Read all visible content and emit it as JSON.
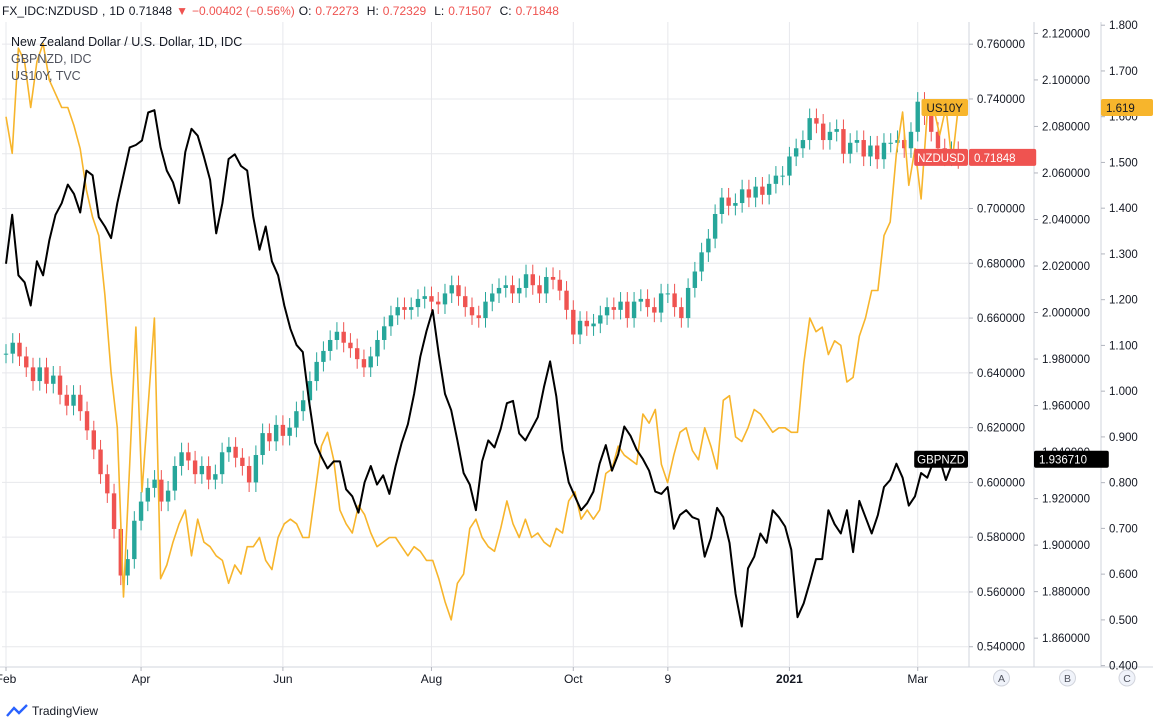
{
  "header": {
    "symbol": "FX_IDC:NZDUSD",
    "interval": "1D",
    "last": "0.71848",
    "change": "−0.00402 (−0.56%)",
    "open_label": "O:",
    "open": "0.72273",
    "high_label": "H:",
    "high": "0.72329",
    "low_label": "L:",
    "low": "0.71507",
    "close_label": "C:",
    "close": "0.71848"
  },
  "legend": {
    "line1": "New Zealand Dollar / U.S. Dollar, 1D, IDC",
    "line2": "GBPNZD, IDC",
    "line3": "US10Y, TVC"
  },
  "colors": {
    "up": "#26a69a",
    "down": "#ef5350",
    "gbpnzd": "#000000",
    "us10y": "#f7b52c",
    "grid": "#e7e8ec"
  },
  "footer": {
    "brand": "TradingView",
    "scale_a": "A",
    "scale_b": "B",
    "scale_c": "C"
  },
  "chart_data": {
    "type": "line",
    "x_ticks": [
      "Feb",
      "Apr",
      "Jun",
      "Aug",
      "Oct",
      "9",
      "2021",
      "Mar"
    ],
    "axes": {
      "A": {
        "ticks": [
          "0.760000",
          "0.740000",
          "0.720000",
          "0.700000",
          "0.680000",
          "0.660000",
          "0.640000",
          "0.620000",
          "0.600000",
          "0.580000",
          "0.560000",
          "0.540000"
        ],
        "ylim": [
          0.5326,
          0.7681
        ]
      },
      "B": {
        "ticks": [
          "2.120000",
          "2.100000",
          "2.080000",
          "2.060000",
          "2.040000",
          "2.020000",
          "2.000000",
          "1.980000",
          "1.960000",
          "1.940000",
          "1.920000",
          "1.900000",
          "1.880000",
          "1.860000"
        ],
        "ylim": [
          1.8476,
          2.1249
        ]
      },
      "C": {
        "ticks": [
          "1.800",
          "1.700",
          "1.600",
          "1.500",
          "1.400",
          "1.300",
          "1.200",
          "1.100",
          "1.000",
          "0.900",
          "0.800",
          "0.700",
          "0.600",
          "0.500",
          "0.400"
        ],
        "ylim": [
          0.397,
          1.807
        ]
      }
    },
    "markers": [
      {
        "name": "US10Y",
        "value": "1.619",
        "axis": "C"
      },
      {
        "name": "NZDUSD",
        "value": "0.71848",
        "axis": "A"
      },
      {
        "name": "GBPNZD",
        "value": "1.936710",
        "axis": "B"
      }
    ],
    "series": [
      {
        "name": "NZDUSD",
        "style": "candles",
        "axis": "A",
        "close": [
          0.647,
          0.651,
          0.646,
          0.642,
          0.637,
          0.642,
          0.636,
          0.639,
          0.632,
          0.628,
          0.632,
          0.626,
          0.619,
          0.612,
          0.603,
          0.596,
          0.583,
          0.566,
          0.572,
          0.586,
          0.593,
          0.598,
          0.601,
          0.593,
          0.597,
          0.606,
          0.611,
          0.608,
          0.603,
          0.606,
          0.601,
          0.603,
          0.611,
          0.613,
          0.609,
          0.606,
          0.6,
          0.61,
          0.618,
          0.615,
          0.621,
          0.617,
          0.62,
          0.626,
          0.63,
          0.637,
          0.644,
          0.648,
          0.652,
          0.655,
          0.651,
          0.649,
          0.645,
          0.642,
          0.646,
          0.652,
          0.657,
          0.661,
          0.664,
          0.663,
          0.664,
          0.667,
          0.668,
          0.666,
          0.665,
          0.669,
          0.672,
          0.668,
          0.664,
          0.661,
          0.66,
          0.666,
          0.669,
          0.671,
          0.672,
          0.669,
          0.671,
          0.676,
          0.672,
          0.669,
          0.675,
          0.674,
          0.67,
          0.663,
          0.654,
          0.659,
          0.657,
          0.658,
          0.661,
          0.664,
          0.663,
          0.666,
          0.66,
          0.666,
          0.667,
          0.664,
          0.662,
          0.669,
          0.669,
          0.664,
          0.66,
          0.671,
          0.677,
          0.684,
          0.689,
          0.698,
          0.704,
          0.701,
          0.702,
          0.707,
          0.704,
          0.708,
          0.705,
          0.709,
          0.712,
          0.712,
          0.719,
          0.722,
          0.725,
          0.733,
          0.731,
          0.725,
          0.728,
          0.729,
          0.72,
          0.724,
          0.725,
          0.719,
          0.723,
          0.718,
          0.724,
          0.724,
          0.725,
          0.722,
          0.728,
          0.739,
          0.734,
          0.728,
          0.722,
          0.719,
          0.721,
          0.718
        ]
      },
      {
        "name": "GBPNZD",
        "style": "line",
        "axis": "B",
        "values": [
          2.021,
          2.042,
          2.016,
          2.013,
          2.003,
          2.022,
          2.016,
          2.031,
          2.042,
          2.047,
          2.055,
          2.051,
          2.043,
          2.061,
          2.059,
          2.041,
          2.037,
          2.032,
          2.047,
          2.059,
          2.071,
          2.072,
          2.074,
          2.086,
          2.087,
          2.071,
          2.061,
          2.056,
          2.047,
          2.069,
          2.079,
          2.076,
          2.067,
          2.057,
          2.034,
          2.047,
          2.066,
          2.068,
          2.063,
          2.061,
          2.041,
          2.027,
          2.037,
          2.022,
          2.016,
          2.003,
          1.993,
          1.986,
          1.983,
          1.962,
          1.944,
          1.938,
          1.933,
          1.936,
          1.936,
          1.924,
          1.921,
          1.914,
          1.927,
          1.934,
          1.926,
          1.93,
          1.922,
          1.934,
          1.944,
          1.952,
          1.965,
          1.981,
          1.992,
          2.001,
          1.982,
          1.965,
          1.958,
          1.945,
          1.931,
          1.926,
          1.915,
          1.936,
          1.945,
          1.942,
          1.95,
          1.961,
          1.962,
          1.948,
          1.945,
          1.95,
          1.955,
          1.968,
          1.979,
          1.964,
          1.941,
          1.927,
          1.921,
          1.915,
          1.918,
          1.923,
          1.935,
          1.943,
          1.932,
          1.939,
          1.951,
          1.947,
          1.941,
          1.937,
          1.932,
          1.923,
          1.922,
          1.925,
          1.907,
          1.913,
          1.915,
          1.912,
          1.911,
          1.895,
          1.903,
          1.916,
          1.912,
          1.901,
          1.879,
          1.865,
          1.89,
          1.895,
          1.905,
          1.901,
          1.915,
          1.912,
          1.908,
          1.898,
          1.869,
          1.875,
          1.884,
          1.894,
          1.894,
          1.915,
          1.909,
          1.905,
          1.915,
          1.897,
          1.919,
          1.912,
          1.905,
          1.913,
          1.925,
          1.928,
          1.935,
          1.929,
          1.917,
          1.921,
          1.931,
          1.929,
          1.936,
          1.937,
          1.928,
          1.935,
          1.937
        ]
      },
      {
        "name": "US10Y",
        "style": "line",
        "axis": "C",
        "values": [
          1.6,
          1.52,
          1.75,
          1.72,
          1.62,
          1.72,
          1.76,
          1.68,
          1.65,
          1.62,
          1.62,
          1.58,
          1.53,
          1.44,
          1.38,
          1.34,
          1.21,
          1.04,
          0.92,
          0.55,
          0.84,
          1.14,
          0.78,
          0.97,
          1.16,
          0.59,
          0.62,
          0.67,
          0.71,
          0.74,
          0.64,
          0.72,
          0.67,
          0.66,
          0.64,
          0.63,
          0.58,
          0.62,
          0.6,
          0.66,
          0.66,
          0.68,
          0.63,
          0.61,
          0.68,
          0.71,
          0.72,
          0.71,
          0.68,
          0.68,
          0.78,
          0.88,
          0.91,
          0.85,
          0.74,
          0.71,
          0.69,
          0.75,
          0.73,
          0.69,
          0.66,
          0.67,
          0.68,
          0.68,
          0.66,
          0.64,
          0.66,
          0.65,
          0.63,
          0.63,
          0.59,
          0.54,
          0.5,
          0.58,
          0.6,
          0.7,
          0.72,
          0.68,
          0.66,
          0.65,
          0.7,
          0.76,
          0.71,
          0.68,
          0.72,
          0.68,
          0.69,
          0.67,
          0.66,
          0.7,
          0.69,
          0.76,
          0.78,
          0.72,
          0.74,
          0.72,
          0.74,
          0.82,
          0.83,
          0.88,
          0.86,
          0.85,
          0.84,
          0.95,
          0.93,
          0.96,
          0.84,
          0.8,
          0.86,
          0.91,
          0.92,
          0.87,
          0.85,
          0.92,
          0.88,
          0.83,
          0.98,
          0.99,
          0.9,
          0.89,
          0.92,
          0.96,
          0.95,
          0.93,
          0.91,
          0.92,
          0.92,
          0.91,
          0.91,
          1.06,
          1.16,
          1.13,
          1.14,
          1.08,
          1.11,
          1.1,
          1.02,
          1.03,
          1.12,
          1.16,
          1.22,
          1.22,
          1.34,
          1.37,
          1.52,
          1.61,
          1.45,
          1.53,
          1.42,
          1.61,
          1.62,
          1.56,
          1.62,
          1.5,
          1.619
        ]
      }
    ]
  }
}
